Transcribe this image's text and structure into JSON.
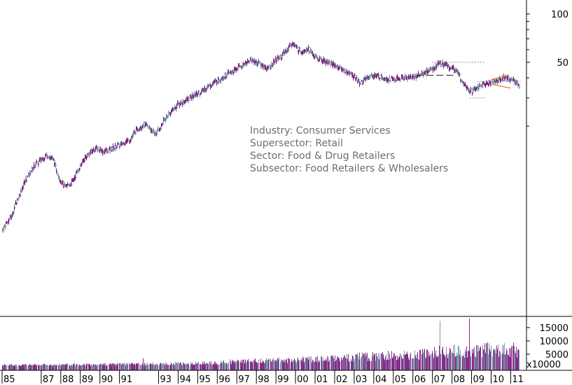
{
  "chart_data": {
    "type": "bar",
    "price_scale": "log",
    "price_ticks": [
      {
        "value": 100,
        "label": "100"
      },
      {
        "value": 50,
        "label": "50"
      }
    ],
    "volume_ticks": [
      {
        "value": 15000,
        "label": "15000"
      },
      {
        "value": 10000,
        "label": "10000"
      },
      {
        "value": 5000,
        "label": "5000"
      }
    ],
    "volume_multiplier_label": "x10000",
    "x_ticks": [
      "85",
      "87",
      "88",
      "89",
      "90",
      "91",
      "93",
      "94",
      "95",
      "96",
      "97",
      "98",
      "99",
      "00",
      "01",
      "02",
      "03",
      "04",
      "05",
      "06",
      "07",
      "08",
      "09",
      "10",
      "11"
    ],
    "x_tick_years": [
      1985,
      1987,
      1988,
      1989,
      1990,
      1991,
      1993,
      1994,
      1995,
      1996,
      1997,
      1998,
      1999,
      2000,
      2001,
      2002,
      2003,
      2004,
      2005,
      2006,
      2007,
      2008,
      2009,
      2010,
      2011
    ],
    "price_anchors": [
      [
        1985.0,
        4.5
      ],
      [
        1985.5,
        5.6
      ],
      [
        1986.0,
        8.2
      ],
      [
        1986.5,
        10.8
      ],
      [
        1987.0,
        12.5
      ],
      [
        1987.3,
        13.2
      ],
      [
        1987.6,
        12.3
      ],
      [
        1987.9,
        9.5
      ],
      [
        1988.2,
        8.3
      ],
      [
        1988.6,
        9.0
      ],
      [
        1989.0,
        11.5
      ],
      [
        1989.4,
        13.5
      ],
      [
        1989.8,
        14.6
      ],
      [
        1990.2,
        13.8
      ],
      [
        1990.6,
        14.5
      ],
      [
        1991.0,
        15.2
      ],
      [
        1991.5,
        16.5
      ],
      [
        1991.9,
        19.0
      ],
      [
        1992.2,
        20.5
      ],
      [
        1992.5,
        19.5
      ],
      [
        1992.8,
        17.8
      ],
      [
        1993.0,
        19.0
      ],
      [
        1993.3,
        22.0
      ],
      [
        1993.6,
        24.5
      ],
      [
        1994.0,
        27.5
      ],
      [
        1994.4,
        29.0
      ],
      [
        1994.8,
        31.0
      ],
      [
        1995.2,
        33.0
      ],
      [
        1995.6,
        36.0
      ],
      [
        1996.0,
        38.5
      ],
      [
        1996.4,
        41.5
      ],
      [
        1996.8,
        44.0
      ],
      [
        1997.1,
        46.5
      ],
      [
        1997.4,
        49.5
      ],
      [
        1997.7,
        51.5
      ],
      [
        1998.0,
        50.0
      ],
      [
        1998.3,
        47.5
      ],
      [
        1998.6,
        45.5
      ],
      [
        1998.9,
        51.0
      ],
      [
        1999.3,
        55.0
      ],
      [
        1999.6,
        61.0
      ],
      [
        1999.85,
        66.0
      ],
      [
        2000.05,
        61.0
      ],
      [
        2000.3,
        58.5
      ],
      [
        2000.6,
        61.5
      ],
      [
        2000.9,
        55.0
      ],
      [
        2001.2,
        52.0
      ],
      [
        2001.6,
        50.5
      ],
      [
        2002.0,
        48.0
      ],
      [
        2002.3,
        45.5
      ],
      [
        2002.7,
        43.0
      ],
      [
        2003.0,
        40.5
      ],
      [
        2003.3,
        37.0
      ],
      [
        2003.7,
        40.5
      ],
      [
        2004.0,
        41.5
      ],
      [
        2004.5,
        40.0
      ],
      [
        2005.0,
        39.0
      ],
      [
        2005.5,
        40.0
      ],
      [
        2006.0,
        40.5
      ],
      [
        2006.4,
        42.0
      ],
      [
        2006.8,
        44.5
      ],
      [
        2007.1,
        46.5
      ],
      [
        2007.3,
        49.5
      ],
      [
        2007.6,
        48.5
      ],
      [
        2007.9,
        46.5
      ],
      [
        2008.2,
        44.5
      ],
      [
        2008.5,
        38.5
      ],
      [
        2008.8,
        34.5
      ],
      [
        2009.0,
        33.0
      ],
      [
        2009.3,
        35.0
      ],
      [
        2009.6,
        36.5
      ],
      [
        2009.9,
        37.0
      ],
      [
        2010.2,
        38.0
      ],
      [
        2010.5,
        39.5
      ],
      [
        2010.7,
        40.5
      ],
      [
        2010.9,
        39.5
      ],
      [
        2011.1,
        38.5
      ],
      [
        2011.3,
        37.0
      ],
      [
        2011.45,
        36.0
      ]
    ],
    "volume_anchors": [
      [
        1985,
        900
      ],
      [
        1990,
        1100
      ],
      [
        1993,
        1300
      ],
      [
        1996,
        1700
      ],
      [
        1998,
        2300
      ],
      [
        2000,
        2800
      ],
      [
        2002,
        3300
      ],
      [
        2004,
        4000
      ],
      [
        2006,
        4500
      ],
      [
        2008,
        6000
      ],
      [
        2010,
        6300
      ],
      [
        2011.45,
        6200
      ]
    ],
    "volume_spikes": [
      [
        2007.4,
        17500
      ],
      [
        2008.9,
        19000
      ],
      [
        1992.2,
        3500
      ],
      [
        1996.6,
        3200
      ]
    ],
    "annotations": {
      "dashed_levels": [
        {
          "x": [
            2007.0,
            2009.7
          ],
          "y": 50
        },
        {
          "x": [
            2008.9,
            2009.7
          ],
          "y": 30
        },
        {
          "x": [
            2009.3,
            2011.5
          ],
          "y": 38
        }
      ],
      "dashed_dark": [
        {
          "x": [
            2006.2,
            2008.1
          ],
          "y": 41.5
        }
      ],
      "trendlines_orange": [
        {
          "from": [
            2010.0,
            39.0
          ],
          "to": [
            2010.9,
            41.5
          ]
        },
        {
          "from": [
            2010.0,
            36.5
          ],
          "to": [
            2011.0,
            34.5
          ]
        }
      ]
    }
  },
  "info_box": {
    "industry": "Industry: Consumer Services",
    "supersector": "Supersector: Retail",
    "sector": "Sector: Food & Drug Retailers",
    "subsector": "Subsector: Food Retailers & Wholesalers"
  }
}
